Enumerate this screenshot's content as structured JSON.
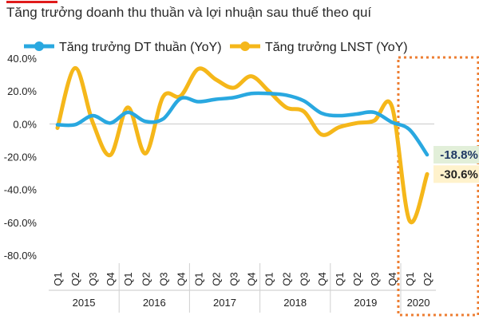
{
  "chart_data": {
    "type": "line",
    "title": "Tăng trưởng doanh thu thuần và lợi nhuận sau thuế theo quí",
    "ylabel": "",
    "xlabel": "",
    "ylim": [
      -80,
      40
    ],
    "yticks": [
      "40.0%",
      "20.0%",
      "0.0%",
      "-20.0%",
      "-40.0%",
      "-60.0%",
      "-80.0%"
    ],
    "ytick_values": [
      40,
      20,
      0,
      -20,
      -40,
      -60,
      -80
    ],
    "grid": false,
    "legend_position": "top",
    "quarters": [
      "Q1",
      "Q2",
      "Q3",
      "Q4",
      "Q1",
      "Q2",
      "Q3",
      "Q4",
      "Q1",
      "Q2",
      "Q3",
      "Q4",
      "Q1",
      "Q2",
      "Q3",
      "Q4",
      "Q1",
      "Q2",
      "Q3",
      "Q4",
      "Q1",
      "Q2"
    ],
    "years": [
      {
        "label": "2015",
        "count": 4
      },
      {
        "label": "2016",
        "count": 4
      },
      {
        "label": "2017",
        "count": 4
      },
      {
        "label": "2018",
        "count": 4
      },
      {
        "label": "2019",
        "count": 4
      },
      {
        "label": "2020",
        "count": 2
      }
    ],
    "series": [
      {
        "name": "Tăng trưởng DT thuần (YoY)",
        "color": "#29a8e0",
        "values": [
          -0.5,
          -0.5,
          5,
          0.5,
          7,
          1.5,
          3,
          15.5,
          13.5,
          15,
          16,
          18.5,
          18.5,
          17.5,
          14,
          6.5,
          5,
          6,
          7,
          1,
          -3.5,
          -18.8
        ]
      },
      {
        "name": "Tăng trưởng LNST (YoY)",
        "color": "#f5b71a",
        "values": [
          -2.5,
          34,
          1,
          -19,
          10,
          -18,
          16.5,
          17,
          33.5,
          27,
          22,
          29,
          20,
          10,
          7.5,
          -6.5,
          -2,
          0.5,
          2,
          10.5,
          -59,
          -30.6
        ]
      }
    ],
    "callouts": [
      {
        "text": "-18.8%",
        "series": 0,
        "bg": "#e2efd9",
        "color": "#1f3864"
      },
      {
        "text": "-30.6%",
        "series": 1,
        "bg": "#fff2cc",
        "color": "#222222"
      }
    ],
    "highlight": {
      "from_index": 19,
      "color": "#ed7d31"
    }
  }
}
